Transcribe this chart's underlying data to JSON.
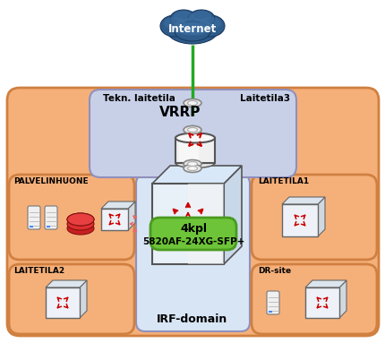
{
  "bg_color": "#ffffff",
  "internet_label": "Internet",
  "vrrp_label": "VRRP",
  "irf_label": "IRF-domain",
  "irf_box_label1": "4kpl",
  "irf_box_label2": "5820AF-24XG-SFP+",
  "tekn_label": "Tekn. laitetila",
  "laitetila3_label": "Laitetila3",
  "palvelinhuone_label": "PALVELINHUONE",
  "laitetila1_label": "LAITETILA1",
  "laitetila2_label": "LAITETILA2",
  "drsite_label": "DR-site",
  "orange_fill": "#f5b07a",
  "orange_edge": "#d08040",
  "blue_fill": "#c8d0e8",
  "blue_edge": "#9090bb",
  "irf_fill": "#d8e5f5",
  "irf_edge": "#9090bb",
  "green_fill": "#6dc438",
  "green_edge": "#4a9a20",
  "conn_color": "#22aa22",
  "router_fill": "#f0f0f0",
  "router_edge": "#555555",
  "switch_fill": "#e8eef5",
  "switch_edge": "#555555",
  "icon_fill": "#f0f0f0",
  "icon_edge": "#777777",
  "arrow_color": "#cc0000"
}
